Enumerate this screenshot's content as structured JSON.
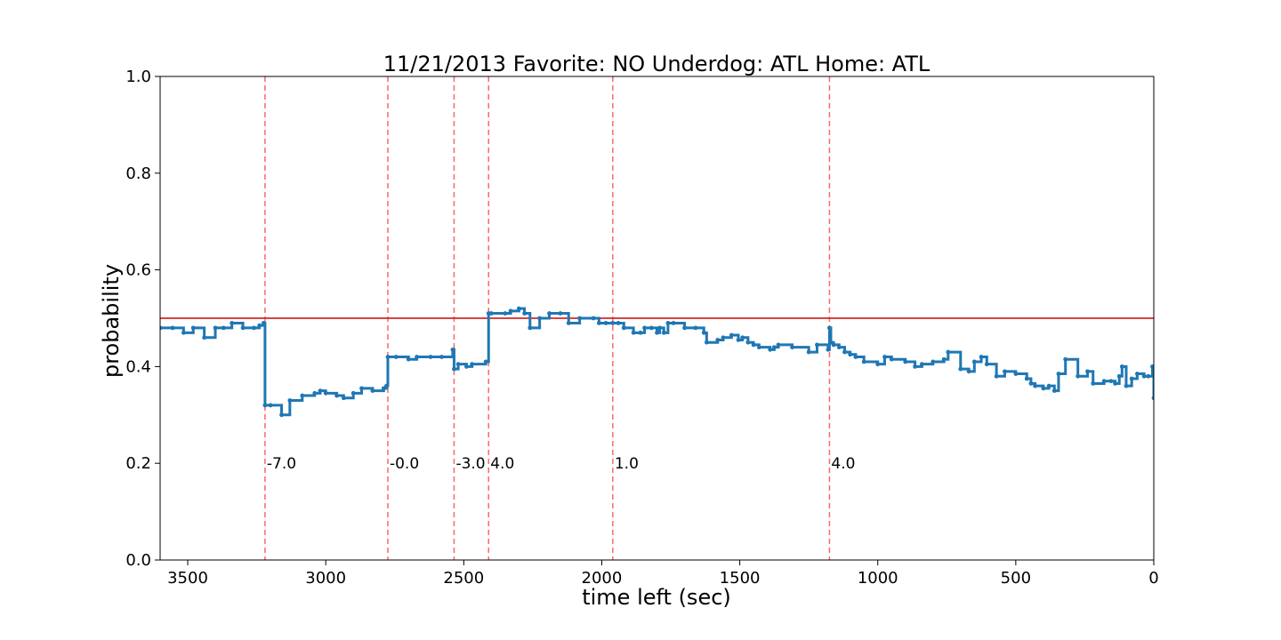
{
  "chart_data": {
    "type": "line",
    "title": "11/21/2013 Favorite: NO Underdog: ATL Home: ATL",
    "xlabel": "time left (sec)",
    "ylabel": "probability",
    "xlim": [
      3600,
      0
    ],
    "ylim": [
      0.0,
      1.0
    ],
    "xticks": [
      3500,
      3000,
      2500,
      2000,
      1500,
      1000,
      500,
      0
    ],
    "yticks": [
      0.0,
      0.2,
      0.4,
      0.6,
      0.8,
      1.0
    ],
    "xtick_labels": [
      "3500",
      "3000",
      "2500",
      "2000",
      "1500",
      "1000",
      "500",
      "0"
    ],
    "ytick_labels": [
      "0.0",
      "0.2",
      "0.4",
      "0.6",
      "0.8",
      "1.0"
    ],
    "grid": false,
    "reference_line": {
      "y": 0.5,
      "color": "#d62728"
    },
    "score_events": [
      {
        "x": 3220,
        "label": "-7.0"
      },
      {
        "x": 2775,
        "label": "-0.0"
      },
      {
        "x": 2535,
        "label": "-3.0"
      },
      {
        "x": 2410,
        "label": "4.0"
      },
      {
        "x": 1960,
        "label": "1.0"
      },
      {
        "x": 1175,
        "label": "4.0"
      }
    ],
    "annotation_y": 0.2,
    "event_line_color": "#ff6666",
    "series": [
      {
        "color": "#1f77b4",
        "step": true,
        "x": [
          3600,
          3555,
          3515,
          3480,
          3440,
          3400,
          3370,
          3340,
          3300,
          3260,
          3240,
          3225,
          3220,
          3200,
          3160,
          3130,
          3085,
          3040,
          3020,
          3000,
          2960,
          2935,
          2900,
          2870,
          2830,
          2790,
          2780,
          2775,
          2745,
          2700,
          2670,
          2620,
          2580,
          2540,
          2535,
          2520,
          2490,
          2470,
          2420,
          2410,
          2400,
          2350,
          2330,
          2300,
          2280,
          2260,
          2225,
          2190,
          2150,
          2120,
          2080,
          2030,
          2010,
          1985,
          1960,
          1940,
          1920,
          1885,
          1860,
          1845,
          1820,
          1800,
          1790,
          1775,
          1760,
          1740,
          1700,
          1660,
          1630,
          1620,
          1580,
          1560,
          1530,
          1505,
          1490,
          1470,
          1450,
          1430,
          1390,
          1375,
          1360,
          1310,
          1250,
          1220,
          1180,
          1175,
          1170,
          1160,
          1140,
          1120,
          1100,
          1080,
          1050,
          1000,
          975,
          950,
          900,
          865,
          840,
          800,
          760,
          745,
          700,
          670,
          650,
          625,
          605,
          570,
          540,
          500,
          460,
          445,
          430,
          400,
          380,
          360,
          345,
          320,
          275,
          240,
          220,
          180,
          155,
          140,
          125,
          115,
          100,
          80,
          60,
          35,
          20,
          5,
          0
        ],
        "y": [
          0.48,
          0.48,
          0.47,
          0.48,
          0.46,
          0.48,
          0.48,
          0.49,
          0.48,
          0.48,
          0.485,
          0.49,
          0.32,
          0.32,
          0.3,
          0.33,
          0.34,
          0.345,
          0.35,
          0.345,
          0.34,
          0.335,
          0.345,
          0.355,
          0.35,
          0.355,
          0.36,
          0.42,
          0.42,
          0.415,
          0.42,
          0.42,
          0.42,
          0.435,
          0.395,
          0.405,
          0.4,
          0.405,
          0.41,
          0.51,
          0.51,
          0.51,
          0.515,
          0.52,
          0.51,
          0.48,
          0.5,
          0.51,
          0.51,
          0.49,
          0.5,
          0.5,
          0.49,
          0.49,
          0.49,
          0.49,
          0.48,
          0.47,
          0.47,
          0.48,
          0.48,
          0.47,
          0.48,
          0.47,
          0.49,
          0.49,
          0.48,
          0.48,
          0.47,
          0.45,
          0.455,
          0.46,
          0.465,
          0.455,
          0.46,
          0.45,
          0.445,
          0.44,
          0.435,
          0.44,
          0.445,
          0.44,
          0.43,
          0.445,
          0.435,
          0.48,
          0.45,
          0.445,
          0.44,
          0.43,
          0.425,
          0.42,
          0.41,
          0.405,
          0.42,
          0.415,
          0.41,
          0.4,
          0.405,
          0.41,
          0.415,
          0.43,
          0.395,
          0.39,
          0.41,
          0.42,
          0.405,
          0.38,
          0.39,
          0.385,
          0.375,
          0.365,
          0.36,
          0.355,
          0.36,
          0.35,
          0.385,
          0.415,
          0.38,
          0.39,
          0.365,
          0.37,
          0.37,
          0.365,
          0.38,
          0.4,
          0.36,
          0.375,
          0.385,
          0.38,
          0.38,
          0.4,
          0.335
        ]
      }
    ]
  }
}
